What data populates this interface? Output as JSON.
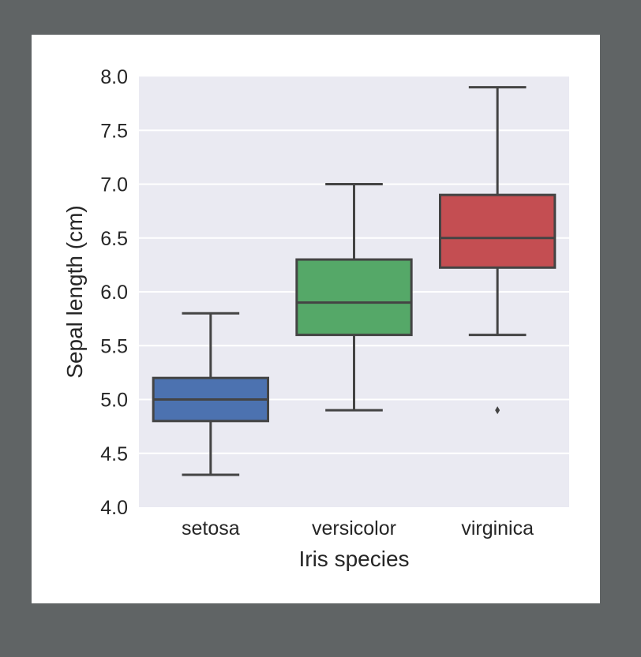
{
  "chart_data": {
    "type": "box",
    "xlabel": "Iris species",
    "ylabel": "Sepal length (cm)",
    "ylim": [
      4.0,
      8.0
    ],
    "yticks": [
      "4.0",
      "4.5",
      "5.0",
      "5.5",
      "6.0",
      "6.5",
      "7.0",
      "7.5",
      "8.0"
    ],
    "grid": true,
    "categories": [
      "setosa",
      "versicolor",
      "virginica"
    ],
    "boxes": [
      {
        "category": "setosa",
        "whisker_low": 4.3,
        "q1": 4.8,
        "median": 5.0,
        "q3": 5.2,
        "whisker_high": 5.8,
        "outliers": [],
        "color": "#4c72b0"
      },
      {
        "category": "versicolor",
        "whisker_low": 4.9,
        "q1": 5.6,
        "median": 5.9,
        "q3": 6.3,
        "whisker_high": 7.0,
        "outliers": [],
        "color": "#55a868"
      },
      {
        "category": "virginica",
        "whisker_low": 5.6,
        "q1": 6.225,
        "median": 6.5,
        "q3": 6.9,
        "whisker_high": 7.9,
        "outliers": [
          4.9
        ],
        "color": "#c44e52"
      }
    ]
  },
  "colors": {
    "outer_background": "#606465",
    "figure_background": "#ffffff",
    "plot_background": "#eaeaf2",
    "grid": "#ffffff",
    "line": "#444444",
    "text": "#262626"
  }
}
